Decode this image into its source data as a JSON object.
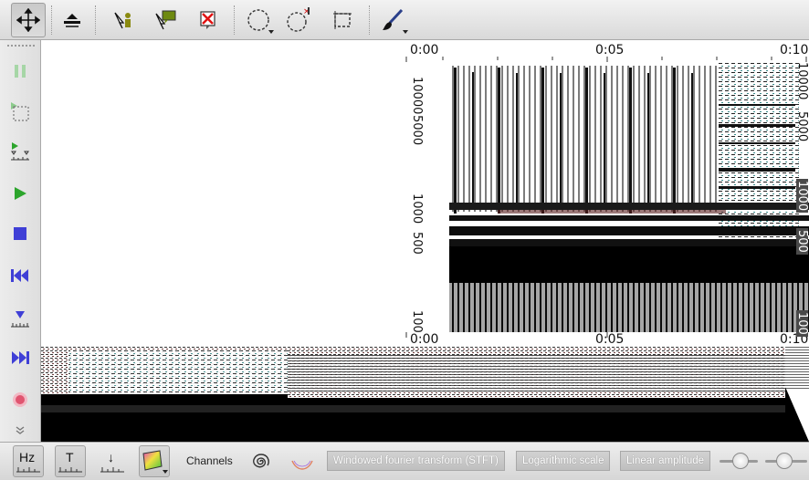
{
  "top_toolbar": {
    "tools": [
      {
        "name": "navigation-tool",
        "icon": "move-arrows-icon",
        "active": true
      },
      {
        "name": "layer-tool",
        "icon": "layer-stack-icon"
      },
      {
        "name": "add-marker-tool",
        "icon": "marker-cursor-icon"
      },
      {
        "name": "comment-tool",
        "icon": "comment-balloon-icon"
      },
      {
        "name": "delete-tool",
        "icon": "delete-cross-icon"
      },
      {
        "name": "ellipse-select-tool",
        "icon": "ellipse-select-icon"
      },
      {
        "name": "peak-select-tool",
        "icon": "peak-select-icon"
      },
      {
        "name": "rect-select-tool",
        "icon": "rect-select-icon"
      },
      {
        "name": "brush-tool",
        "icon": "brush-icon"
      }
    ]
  },
  "left_toolbar": {
    "buttons": [
      {
        "name": "pause-button",
        "icon": "pause-icon"
      },
      {
        "name": "play-selection-button",
        "icon": "play-selection-icon"
      },
      {
        "name": "play-marker-button",
        "icon": "play-marker-icon"
      },
      {
        "name": "play-button",
        "icon": "play-icon"
      },
      {
        "name": "stop-button",
        "icon": "stop-icon"
      },
      {
        "name": "rewind-button",
        "icon": "rewind-icon"
      },
      {
        "name": "goto-marker-button",
        "icon": "goto-marker-icon"
      },
      {
        "name": "fast-forward-button",
        "icon": "fast-forward-icon"
      },
      {
        "name": "record-button",
        "icon": "record-icon"
      },
      {
        "name": "more-button",
        "icon": "chevron-down-icon"
      }
    ],
    "colors": {
      "play": "#2ca52c",
      "stop": "#3f3fd6",
      "record": "#e05570"
    }
  },
  "view": {
    "time_labels_top": [
      "0:00",
      "0:05",
      "0:10"
    ],
    "time_labels_bottom": [
      "0:00",
      "0:05",
      "0:10"
    ],
    "freq_labels_left": [
      "10000",
      "5000",
      "1000",
      "500",
      "100"
    ],
    "freq_labels_right": [
      "10000",
      "5000",
      "1000",
      "500",
      "100"
    ]
  },
  "bottom_toolbar": {
    "hz_label": "Hz",
    "t_label": "T",
    "arrow_label": "↓",
    "channels_label": "Channels",
    "transform_label": "Windowed fourier transform (STFT)",
    "scale_label": "Logarithmic scale",
    "amplitude_label": "Linear amplitude"
  }
}
